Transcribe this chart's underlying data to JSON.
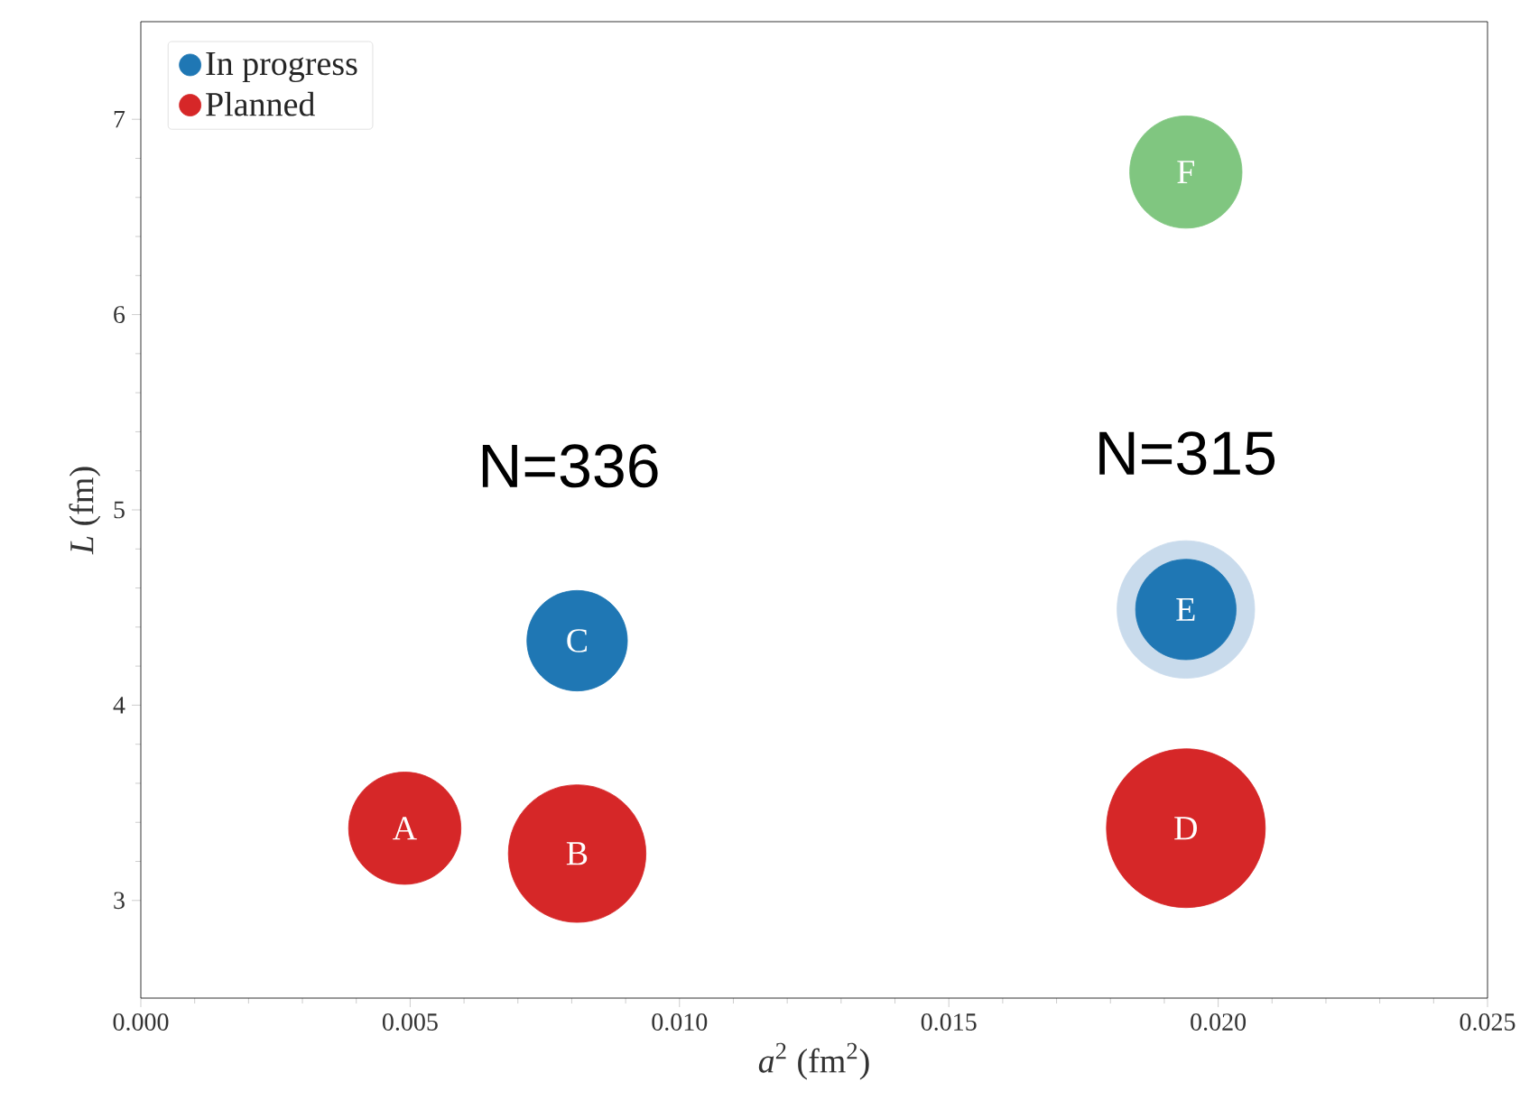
{
  "chart_data": {
    "type": "bubble",
    "xlabel": "*a*$^{2}$ (fm$^{2}$)",
    "ylabel": "*L* (fm)",
    "xlim": [
      0,
      0.025
    ],
    "ylim": [
      2.5,
      7.5
    ],
    "xticks": [
      {
        "value": 0,
        "label": "0.000"
      },
      {
        "value": 0.005,
        "label": "0.005"
      },
      {
        "value": 0.01,
        "label": "0.010"
      },
      {
        "value": 0.015,
        "label": "0.015"
      },
      {
        "value": 0.02,
        "label": "0.020"
      },
      {
        "value": 0.025,
        "label": "0.025"
      }
    ],
    "yticks": [
      3,
      4,
      5,
      6,
      7
    ],
    "grid": false,
    "legend": "top left",
    "marker": "circle",
    "series": [
      {
        "name": "In progress",
        "color": "#1f77b4",
        "x": [
          0.0081,
          0.0194,
          0.0194
        ],
        "values": [
          4.33,
          4.49,
          4.49
        ],
        "sizes": [
          0.4,
          0.75,
          0.4
        ],
        "colors": [
          "#1f77b4",
          "#c9dbec",
          "#1f77b4"
        ],
        "value_labels": [
          "C",
          null,
          "E"
        ]
      },
      {
        "name": "Planned",
        "color": "#d62728",
        "x": [
          0.0049,
          0.0081,
          0.0194
        ],
        "values": [
          3.37,
          3.24,
          3.37
        ],
        "sizes": [
          0.5,
          0.75,
          1
        ],
        "colors": [
          "#d62728",
          "#d62728",
          "#d62728"
        ],
        "value_labels": [
          "A",
          "B",
          "D"
        ]
      },
      {
        "color": "#80c680",
        "x": [
          0.0194
        ],
        "values": [
          6.73
        ],
        "sizes": [
          0.5
        ],
        "value_labels": [
          "F"
        ]
      }
    ],
    "annotations": [
      "N=336",
      "N=315"
    ]
  }
}
